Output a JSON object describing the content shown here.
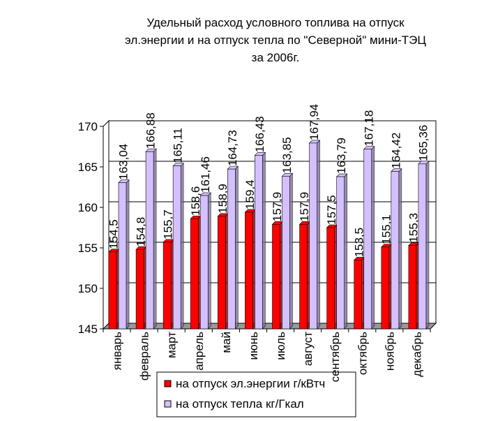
{
  "chart_data": {
    "type": "bar",
    "title": [
      "Удельный расход условного топлива на отпуск",
      "эл.энергии и на отпуск тепла по \"Северной\" мини-ТЭЦ",
      "за 2006г."
    ],
    "categories": [
      "январь",
      "февраль",
      "март",
      "апрель",
      "май",
      "июнь",
      "июль",
      "август",
      "сентябрь",
      "октябрь",
      "ноябрь",
      "декабрь"
    ],
    "series": [
      {
        "name": "на отпуск эл.энергии г/кВтч",
        "color": "#ff0000",
        "values": [
          154.5,
          154.8,
          155.7,
          158.6,
          158.9,
          159.4,
          157.9,
          157.9,
          157.5,
          153.5,
          155.1,
          155.3
        ],
        "value_labels": [
          "154,5",
          "154,8",
          "155,7",
          "158,6",
          "158,9",
          "159,4",
          "157,9",
          "157,9",
          "157,5",
          "153,5",
          "155,1",
          "155,3"
        ]
      },
      {
        "name": "на отпуск тепла кг/Гкал",
        "color": "#d4c0ff",
        "values": [
          163.04,
          166.88,
          165.11,
          161.46,
          164.73,
          166.43,
          163.85,
          167.94,
          163.79,
          167.18,
          164.42,
          165.36
        ],
        "value_labels": [
          "163,04",
          "166,88",
          "165,11",
          "161,46",
          "164,73",
          "166,43",
          "163,85",
          "167,94",
          "163,79",
          "167,18",
          "164,42",
          "165,36"
        ]
      }
    ],
    "ylim": [
      145,
      170
    ],
    "yticks": [
      145,
      150,
      155,
      160,
      165,
      170
    ],
    "grid": true
  }
}
